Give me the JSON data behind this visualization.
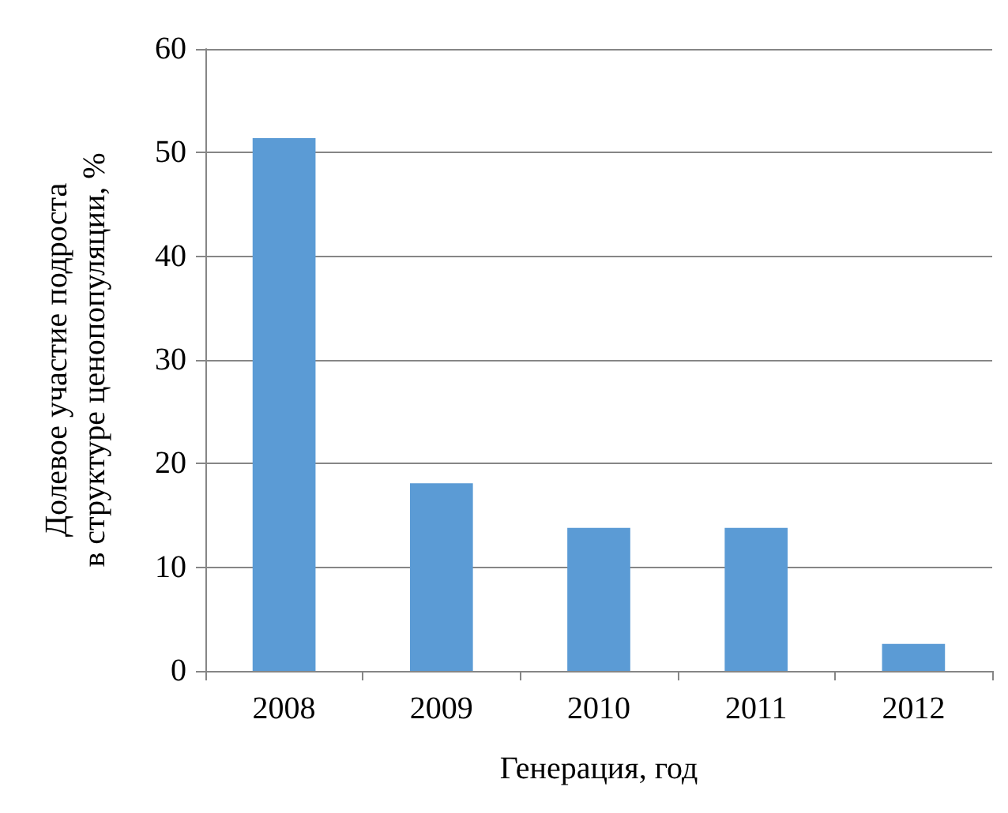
{
  "chart_data": {
    "type": "bar",
    "xlabel": "Генерация, год",
    "ylabel": "Долевое участие подроста\nв структуре ценопопуляции, %",
    "categories": [
      "2008",
      "2009",
      "2010",
      "2011",
      "2012"
    ],
    "values": [
      51.4,
      18.1,
      13.8,
      13.8,
      2.6
    ],
    "color": "#5b9bd5",
    "ylim": [
      0,
      60
    ],
    "yticks": [
      0,
      10,
      20,
      30,
      40,
      50,
      60
    ],
    "grid": "y"
  }
}
